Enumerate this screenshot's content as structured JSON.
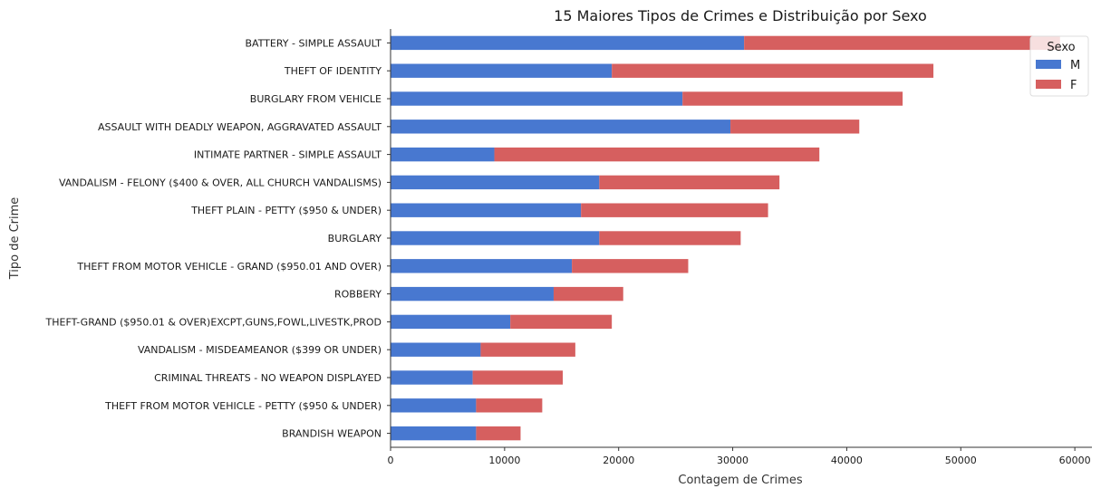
{
  "chart_data": {
    "type": "bar",
    "orientation": "horizontal",
    "stacked": true,
    "title": "15 Maiores Tipos de Crimes e Distribuição por Sexo",
    "xlabel": "Contagem de Crimes",
    "ylabel": "Tipo de Crime",
    "xlim": [
      0,
      61500
    ],
    "xticks": [
      0,
      10000,
      20000,
      30000,
      40000,
      50000,
      60000
    ],
    "grid": false,
    "legend": {
      "title": "Sexo",
      "position": "top-right"
    },
    "categories": [
      "BATTERY - SIMPLE ASSAULT",
      "THEFT OF IDENTITY",
      "BURGLARY FROM VEHICLE",
      "ASSAULT WITH DEADLY WEAPON, AGGRAVATED ASSAULT",
      "INTIMATE PARTNER - SIMPLE ASSAULT",
      "VANDALISM - FELONY ($400 & OVER, ALL CHURCH VANDALISMS)",
      "THEFT PLAIN - PETTY ($950 & UNDER)",
      "BURGLARY",
      "THEFT FROM MOTOR VEHICLE - GRAND ($950.01 AND OVER)",
      "ROBBERY",
      "THEFT-GRAND ($950.01 & OVER)EXCPT,GUNS,FOWL,LIVESTK,PROD",
      "VANDALISM - MISDEAMEANOR ($399 OR UNDER)",
      "CRIMINAL THREATS - NO WEAPON DISPLAYED",
      "THEFT FROM MOTOR VEHICLE - PETTY ($950 & UNDER)",
      "BRANDISH WEAPON"
    ],
    "series": [
      {
        "name": "M",
        "color": "#4878d0",
        "values": [
          31000,
          19400,
          25600,
          29800,
          9100,
          18300,
          16700,
          18300,
          15900,
          14300,
          10500,
          7900,
          7200,
          7500,
          7500
        ]
      },
      {
        "name": "F",
        "color": "#d65f5f",
        "values": [
          27700,
          28200,
          19300,
          11300,
          28500,
          15800,
          16400,
          12400,
          10200,
          6100,
          8900,
          8300,
          7900,
          5800,
          3900
        ]
      }
    ]
  }
}
